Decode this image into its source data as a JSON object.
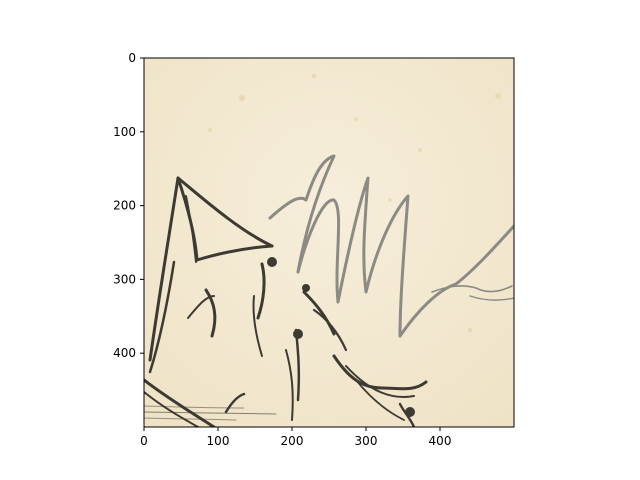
{
  "chart_data": {
    "type": "image",
    "title": "",
    "xlabel": "",
    "ylabel": "",
    "xlim": [
      0,
      500
    ],
    "ylim": [
      500,
      0
    ],
    "x_ticks": [
      0,
      100,
      200,
      300,
      400
    ],
    "y_ticks": [
      0,
      100,
      200,
      300,
      400
    ],
    "grid": false,
    "legend": "none",
    "image_content": "sepia engraving fragment with handwritten signature strokes",
    "colors": {
      "paper": "#f1e6cc",
      "paper_light": "#f6eedb",
      "ink": "#3d3a33",
      "pencil": "#8c8a84",
      "frame": "#000000"
    }
  }
}
